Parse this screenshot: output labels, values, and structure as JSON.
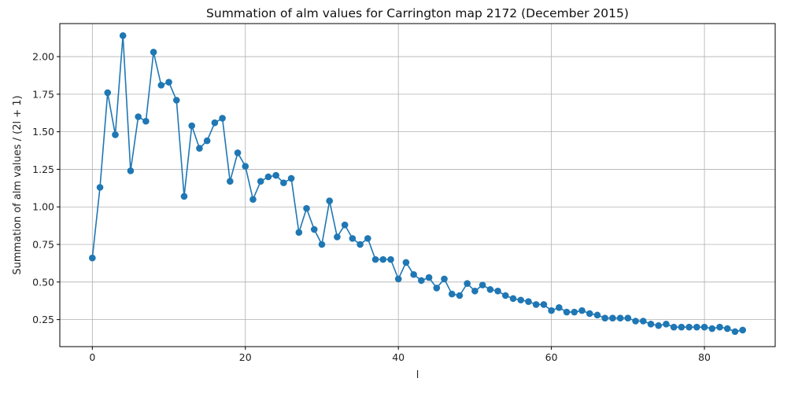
{
  "chart_data": {
    "type": "line",
    "title": "Summation of alm values for Carrington map 2172 (December 2015)",
    "xlabel": "l",
    "ylabel": "Summation of alm values / (2l + 1)",
    "xlim": [
      -4.25,
      89.25
    ],
    "ylim": [
      0.07,
      2.22
    ],
    "xticks": [
      0,
      20,
      40,
      60,
      80
    ],
    "yticks": [
      0.25,
      0.5,
      0.75,
      1.0,
      1.25,
      1.5,
      1.75,
      2.0
    ],
    "ytick_labels": [
      "0.25",
      "0.50",
      "0.75",
      "1.00",
      "1.25",
      "1.50",
      "1.75",
      "2.00"
    ],
    "grid": true,
    "colors": {
      "series": "#1f77b4",
      "grid": "#b0b0b0",
      "axis": "#000000"
    },
    "series": [
      {
        "x": [
          0,
          1,
          2,
          3,
          4,
          5,
          6,
          7,
          8,
          9,
          10,
          11,
          12,
          13,
          14,
          15,
          16,
          17,
          18,
          19,
          20,
          21,
          22,
          23,
          24,
          25,
          26,
          27,
          28,
          29,
          30,
          31,
          32,
          33,
          34,
          35,
          36,
          37,
          38,
          39,
          40,
          41,
          42,
          43,
          44,
          45,
          46,
          47,
          48,
          49,
          50,
          51,
          52,
          53,
          54,
          55,
          56,
          57,
          58,
          59,
          60,
          61,
          62,
          63,
          64,
          65,
          66,
          67,
          68,
          69,
          70,
          71,
          72,
          73,
          74,
          75,
          76,
          77,
          78,
          79,
          80,
          81,
          82,
          83,
          84,
          85
        ],
        "values": [
          0.66,
          1.13,
          1.76,
          1.48,
          2.14,
          1.24,
          1.6,
          1.57,
          2.03,
          1.81,
          1.83,
          1.71,
          1.07,
          1.54,
          1.39,
          1.44,
          1.56,
          1.59,
          1.17,
          1.36,
          1.27,
          1.05,
          1.17,
          1.2,
          1.21,
          1.16,
          1.19,
          0.83,
          0.99,
          0.85,
          0.75,
          1.04,
          0.8,
          0.88,
          0.79,
          0.75,
          0.79,
          0.65,
          0.65,
          0.65,
          0.52,
          0.63,
          0.55,
          0.51,
          0.53,
          0.46,
          0.52,
          0.42,
          0.41,
          0.49,
          0.44,
          0.48,
          0.45,
          0.44,
          0.41,
          0.39,
          0.38,
          0.37,
          0.35,
          0.35,
          0.31,
          0.33,
          0.3,
          0.3,
          0.31,
          0.29,
          0.28,
          0.26,
          0.26,
          0.26,
          0.26,
          0.24,
          0.24,
          0.22,
          0.21,
          0.22,
          0.2,
          0.2,
          0.2,
          0.2,
          0.2,
          0.19,
          0.2,
          0.19,
          0.17,
          0.18
        ]
      }
    ]
  }
}
